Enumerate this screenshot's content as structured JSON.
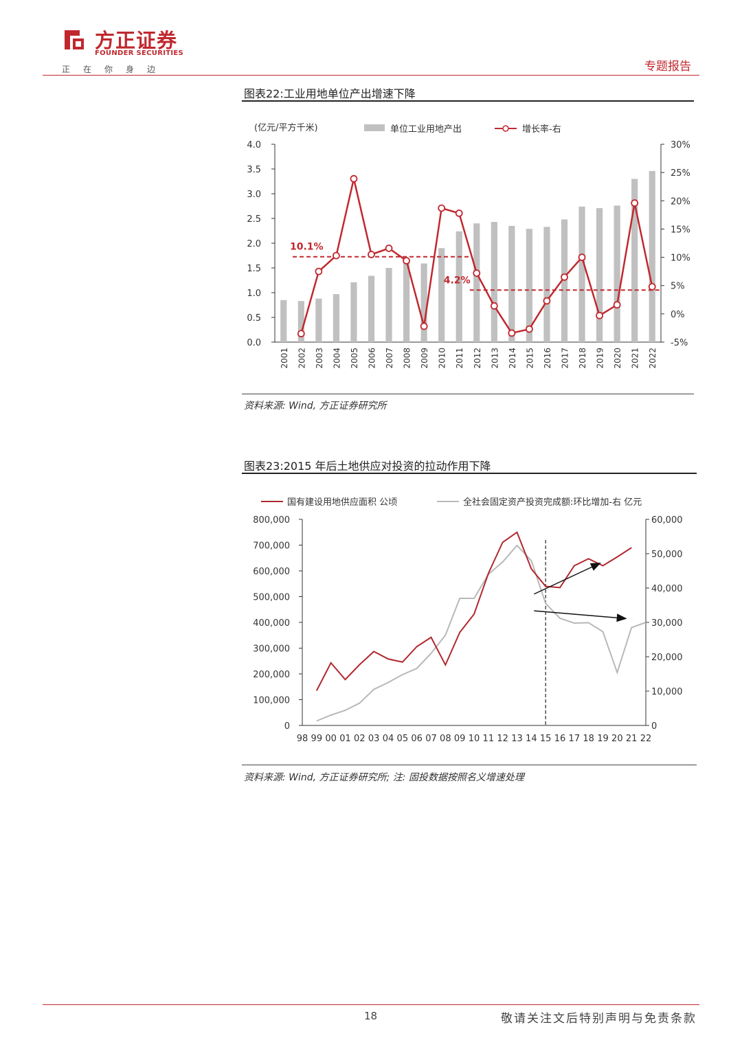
{
  "header": {
    "brand_cn": "方正证券",
    "brand_en": "FOUNDER SECURITIES",
    "slogan": "正在你身边",
    "report_type": "专题报告",
    "brand_color": "#c0282e"
  },
  "figure22": {
    "title": "图表22:工业用地单位产出增速下降",
    "source": "资料来源: Wind, 方正证券研究所"
  },
  "figure23": {
    "title": "图表23:2015 年后土地供应对投资的拉动作用下降",
    "source": "资料来源: Wind, 方正证券研究所; 注: 固投数据按照名义增速处理"
  },
  "footer": {
    "page_number": "18",
    "disclaimer": "敬请关注文后特别声明与免责条款"
  },
  "chart_data": [
    {
      "type": "bar+line",
      "unit_label": "(亿元/平方千米)",
      "categories": [
        "2001",
        "2002",
        "2003",
        "2004",
        "2005",
        "2006",
        "2007",
        "2008",
        "2009",
        "2010",
        "2011",
        "2012",
        "2013",
        "2014",
        "2015",
        "2016",
        "2017",
        "2018",
        "2019",
        "2020",
        "2021",
        "2022"
      ],
      "series": [
        {
          "name": "单位工业用地产出",
          "axis": "left",
          "kind": "bar",
          "color": "#c0c0c0",
          "values": [
            0.85,
            0.83,
            0.88,
            0.97,
            1.21,
            1.34,
            1.5,
            1.62,
            1.59,
            1.9,
            2.24,
            2.4,
            2.43,
            2.35,
            2.29,
            2.33,
            2.48,
            2.74,
            2.71,
            2.76,
            3.3,
            3.46
          ]
        },
        {
          "name": "增长率-右",
          "axis": "right",
          "kind": "line",
          "color": "#c0282e",
          "values": [
            null,
            -3.5,
            7.5,
            10.3,
            23.9,
            10.5,
            11.6,
            9.4,
            -2.2,
            18.7,
            17.8,
            7.2,
            1.4,
            -3.4,
            -2.7,
            2.3,
            6.5,
            10.0,
            -0.3,
            1.6,
            19.6,
            4.8
          ]
        }
      ],
      "ylim_left": [
        0,
        4.0
      ],
      "yticks_left": [
        "0.0",
        "0.5",
        "1.0",
        "1.5",
        "2.0",
        "2.5",
        "3.0",
        "3.5",
        "4.0"
      ],
      "ylim_right": [
        -5,
        30
      ],
      "yticks_right": [
        "-5%",
        "0%",
        "5%",
        "10%",
        "15%",
        "20%",
        "25%",
        "30%"
      ],
      "annotations": [
        {
          "text": "10.1%",
          "value": 10.1,
          "from": "2001",
          "to": "2012"
        },
        {
          "text": "4.2%",
          "value": 4.2,
          "from": "2012",
          "to": "2022"
        }
      ],
      "legend_placement": "top"
    },
    {
      "type": "line",
      "categories": [
        "98",
        "99",
        "00",
        "01",
        "02",
        "03",
        "04",
        "05",
        "06",
        "07",
        "08",
        "09",
        "10",
        "11",
        "12",
        "13",
        "14",
        "15",
        "16",
        "17",
        "18",
        "19",
        "20",
        "21",
        "22"
      ],
      "series": [
        {
          "name": "国有建设用地供应面积 公顷",
          "axis": "left",
          "color": "#b0282e",
          "values": [
            null,
            135000,
            243000,
            178000,
            236000,
            287000,
            258000,
            246000,
            306000,
            342000,
            235000,
            361000,
            432000,
            590000,
            711000,
            750000,
            608000,
            540000,
            535000,
            620000,
            647000,
            620000,
            654000,
            690000,
            null
          ]
        },
        {
          "name": "全社会固定资产投资完成额:环比增加-右 亿元",
          "axis": "right",
          "color": "#b8b8b8",
          "values": [
            null,
            1300,
            3000,
            4400,
            6500,
            10500,
            12500,
            14800,
            16600,
            21000,
            26300,
            37000,
            37000,
            44000,
            47600,
            52400,
            48000,
            35500,
            31200,
            29800,
            29900,
            27300,
            15400,
            28500,
            30000
          ]
        }
      ],
      "ylim_left": [
        0,
        800000
      ],
      "yticks_left": [
        "0",
        "100,000",
        "200,000",
        "300,000",
        "400,000",
        "500,000",
        "600,000",
        "700,000",
        "800,000"
      ],
      "ylim_right": [
        0,
        60000
      ],
      "yticks_right": [
        "0",
        "10,000",
        "20,000",
        "30,000",
        "40,000",
        "50,000",
        "60,000"
      ],
      "divider_at": "15",
      "legend_placement": "top"
    }
  ]
}
